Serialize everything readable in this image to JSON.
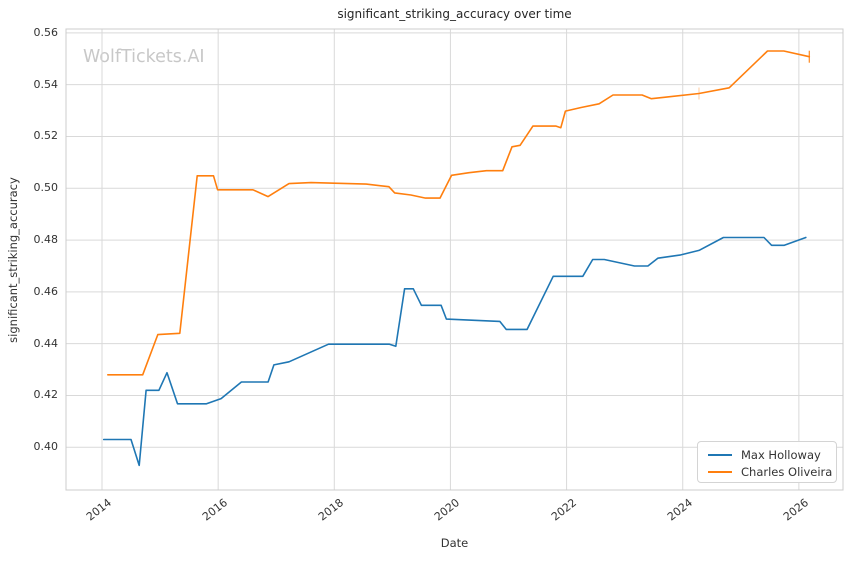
{
  "watermark": "WolfTickets.AI",
  "chart_data": {
    "type": "line",
    "title": "significant_striking_accuracy over time",
    "xlabel": "Date",
    "ylabel": "significant_striking_accuracy",
    "x_ticks": [
      2014,
      2016,
      2018,
      2020,
      2022,
      2024,
      2026
    ],
    "y_ticks": [
      0.4,
      0.42,
      0.44,
      0.46,
      0.48,
      0.5,
      0.52,
      0.54,
      0.56
    ],
    "xlim": [
      2013.38,
      2026.76
    ],
    "ylim": [
      0.3835,
      0.5615
    ],
    "grid": true,
    "legend_position": "lower right",
    "colors": {
      "blue": "#1f77b4",
      "orange": "#ff7f0e",
      "grid": "#d9d9d9",
      "frame": "#cccccc"
    },
    "series": [
      {
        "name": "Max Holloway",
        "color": "#1f77b4",
        "points": [
          [
            2014.03,
            0.403
          ],
          [
            2014.5,
            0.403
          ],
          [
            2014.64,
            0.393
          ],
          [
            2014.76,
            0.422
          ],
          [
            2014.98,
            0.422
          ],
          [
            2015.12,
            0.4288
          ],
          [
            2015.3,
            0.4168
          ],
          [
            2015.8,
            0.4168
          ],
          [
            2016.05,
            0.4188
          ],
          [
            2016.4,
            0.4252
          ],
          [
            2016.86,
            0.4252
          ],
          [
            2016.96,
            0.4318
          ],
          [
            2017.22,
            0.433
          ],
          [
            2017.9,
            0.4398
          ],
          [
            2018.95,
            0.4398
          ],
          [
            2019.06,
            0.439
          ],
          [
            2019.21,
            0.4612
          ],
          [
            2019.36,
            0.4612
          ],
          [
            2019.5,
            0.4548
          ],
          [
            2019.84,
            0.4548
          ],
          [
            2019.93,
            0.4495
          ],
          [
            2020.85,
            0.4486
          ],
          [
            2020.96,
            0.4455
          ],
          [
            2021.32,
            0.4455
          ],
          [
            2021.77,
            0.466
          ],
          [
            2022.28,
            0.466
          ],
          [
            2022.45,
            0.4725
          ],
          [
            2022.65,
            0.4725
          ],
          [
            2023.17,
            0.47
          ],
          [
            2023.4,
            0.47
          ],
          [
            2023.57,
            0.473
          ],
          [
            2023.95,
            0.4742
          ],
          [
            2024.28,
            0.476
          ],
          [
            2024.7,
            0.481
          ],
          [
            2025.4,
            0.481
          ],
          [
            2025.53,
            0.478
          ],
          [
            2025.75,
            0.478
          ],
          [
            2026.12,
            0.481
          ]
        ],
        "markers": []
      },
      {
        "name": "Charles Oliveira",
        "color": "#ff7f0e",
        "points": [
          [
            2014.1,
            0.428
          ],
          [
            2014.7,
            0.428
          ],
          [
            2014.96,
            0.4435
          ],
          [
            2015.34,
            0.444
          ],
          [
            2015.64,
            0.5048
          ],
          [
            2015.92,
            0.5048
          ],
          [
            2015.99,
            0.4994
          ],
          [
            2016.6,
            0.4994
          ],
          [
            2016.86,
            0.4968
          ],
          [
            2017.22,
            0.5018
          ],
          [
            2017.6,
            0.5022
          ],
          [
            2018.55,
            0.5016
          ],
          [
            2018.94,
            0.5006
          ],
          [
            2019.04,
            0.4982
          ],
          [
            2019.32,
            0.4974
          ],
          [
            2019.57,
            0.4962
          ],
          [
            2019.82,
            0.4962
          ],
          [
            2020.02,
            0.505
          ],
          [
            2020.32,
            0.506
          ],
          [
            2020.62,
            0.5068
          ],
          [
            2020.9,
            0.5068
          ],
          [
            2021.06,
            0.516
          ],
          [
            2021.2,
            0.5166
          ],
          [
            2021.42,
            0.524
          ],
          [
            2021.82,
            0.524
          ],
          [
            2021.9,
            0.5234
          ],
          [
            2021.98,
            0.5298
          ],
          [
            2022.25,
            0.5312
          ],
          [
            2022.56,
            0.5326
          ],
          [
            2022.8,
            0.536
          ],
          [
            2023.3,
            0.536
          ],
          [
            2023.46,
            0.5346
          ],
          [
            2023.72,
            0.5352
          ],
          [
            2024.28,
            0.5366
          ],
          [
            2024.8,
            0.5388
          ],
          [
            2025.46,
            0.553
          ],
          [
            2025.74,
            0.553
          ],
          [
            2026.18,
            0.5508
          ]
        ],
        "markers": [
          [
            2024.28,
            0.5366
          ],
          [
            2026.18,
            0.5508
          ]
        ]
      }
    ]
  }
}
